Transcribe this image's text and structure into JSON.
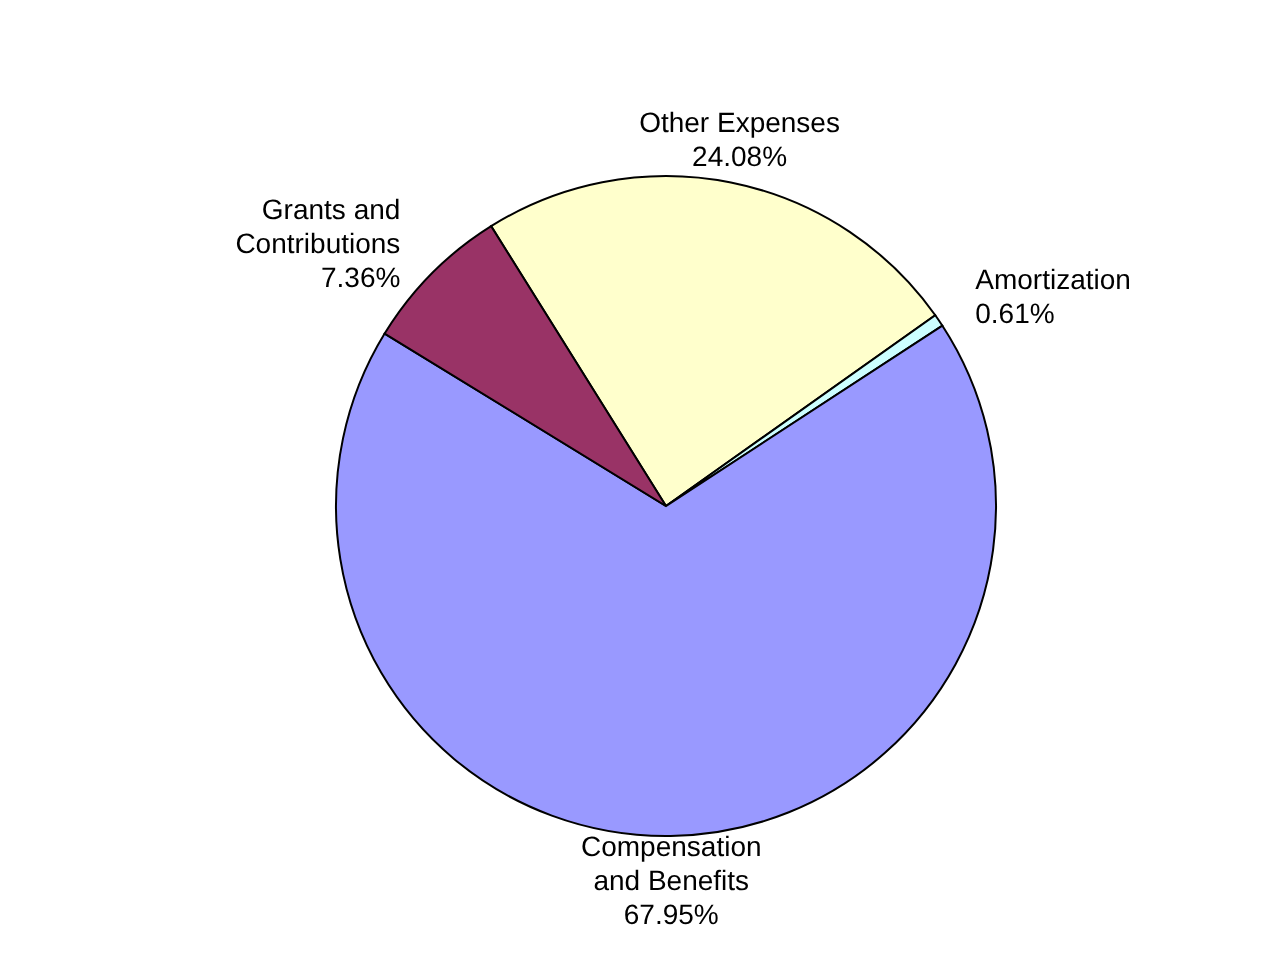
{
  "chart_data": {
    "type": "pie",
    "categories": [
      "Other Expenses",
      "Amortization",
      "Compensation and Benefits",
      "Grants and Contributions"
    ],
    "values": [
      24.08,
      0.61,
      67.95,
      7.36
    ],
    "value_labels": [
      "24.08%",
      "0.61%",
      "67.95%",
      "7.36%"
    ],
    "colors": [
      "#ffffcc",
      "#ccffff",
      "#9999ff",
      "#993366"
    ],
    "legend": false
  }
}
